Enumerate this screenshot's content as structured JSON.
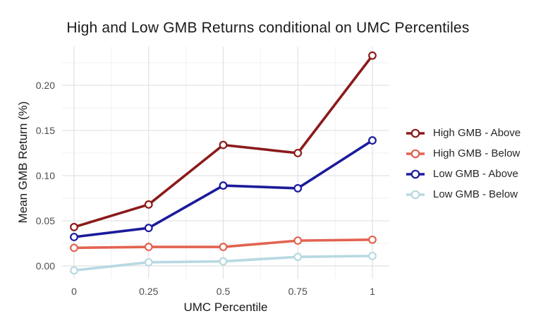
{
  "title": "High and Low GMB Returns conditional on UMC Percentiles",
  "chart_data": {
    "type": "line",
    "title": "High and Low GMB Returns conditional on UMC Percentiles",
    "xlabel": "UMC Percentile",
    "ylabel": "Mean GMB Return (%)",
    "x": [
      0,
      0.25,
      0.5,
      0.75,
      1
    ],
    "series": [
      {
        "name": "High GMB - Above",
        "color": "#8B1A1A",
        "values": [
          0.043,
          0.068,
          0.134,
          0.125,
          0.233
        ]
      },
      {
        "name": "High GMB - Below",
        "color": "#E26350",
        "values": [
          0.02,
          0.021,
          0.021,
          0.028,
          0.029
        ]
      },
      {
        "name": "Low GMB - Above",
        "color": "#1B1B9B",
        "values": [
          0.032,
          0.042,
          0.089,
          0.086,
          0.139
        ]
      },
      {
        "name": "Low GMB - Below",
        "color": "#B7D9E2",
        "values": [
          -0.005,
          0.004,
          0.005,
          0.01,
          0.011
        ]
      }
    ],
    "x_ticks": {
      "values": [
        0,
        0.25,
        0.5,
        0.75,
        1
      ],
      "labels": [
        "0",
        "0.25",
        "0.5",
        "0.75",
        "1"
      ]
    },
    "y_ticks": {
      "values": [
        0,
        0.05,
        0.1,
        0.15,
        0.2
      ],
      "labels": [
        "0.00",
        "0.05",
        "0.10",
        "0.15",
        "0.20"
      ]
    },
    "x_minor_ticks": [
      0.125,
      0.375,
      0.625,
      0.875
    ],
    "y_minor_ticks": [
      0.025,
      0.075,
      0.125,
      0.175,
      0.225
    ],
    "xlim": [
      -0.0402,
      1.0567
    ],
    "ylim": [
      -0.0141,
      0.243
    ],
    "grid": "major+minor",
    "legend_position": "right",
    "marker": "open-circle",
    "marker_fill": "#FFFFFF"
  },
  "colors": {
    "background": "#FFFFFF",
    "grid_major": "#E3E3E3",
    "grid_minor": "#F0F0F0",
    "tick_label": "#4D4D4D",
    "text": "#1A1A1A"
  }
}
